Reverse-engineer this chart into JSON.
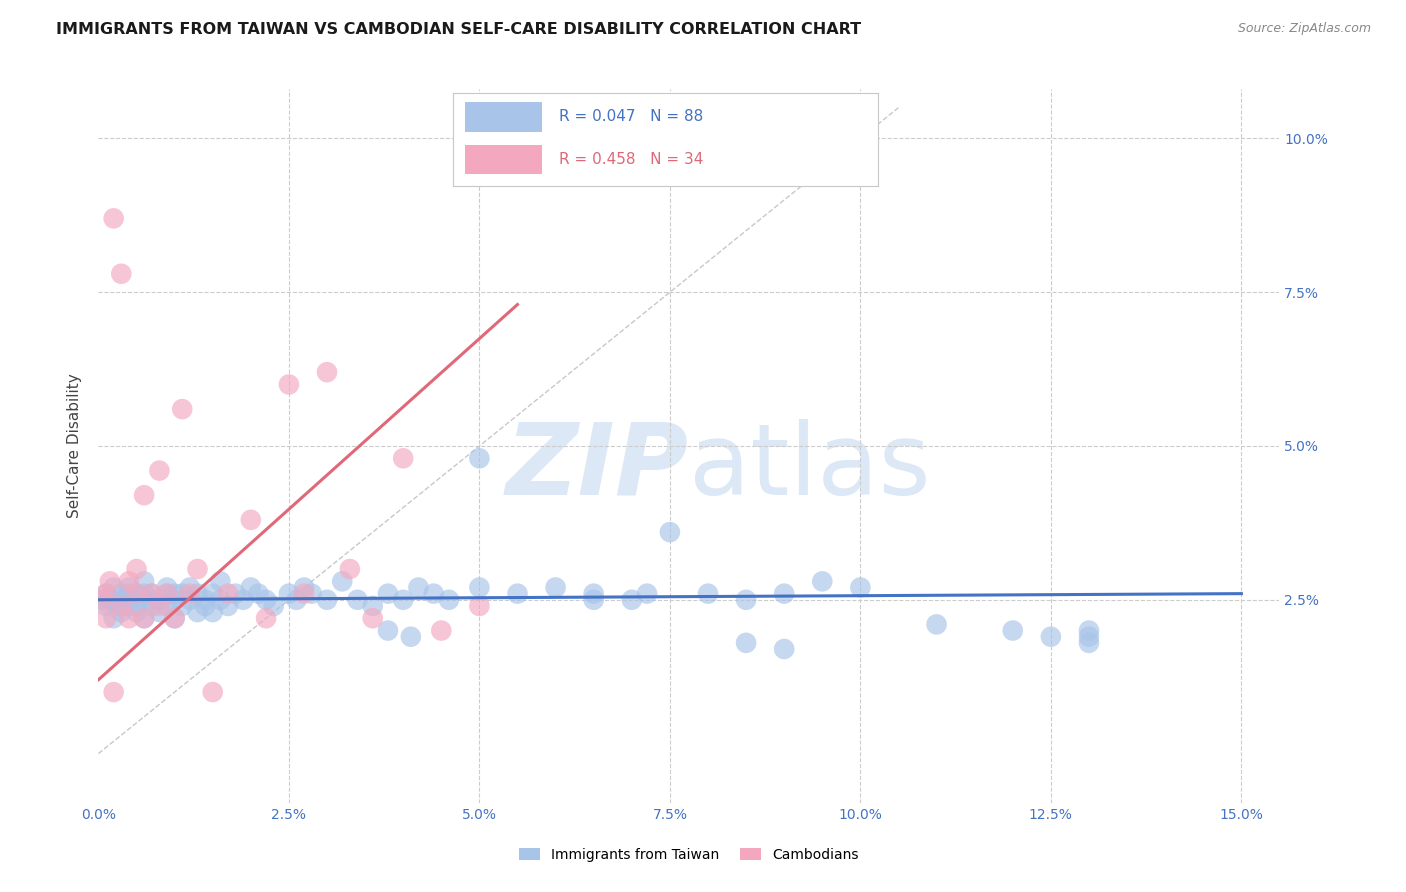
{
  "title": "IMMIGRANTS FROM TAIWAN VS CAMBODIAN SELF-CARE DISABILITY CORRELATION CHART",
  "source": "Source: ZipAtlas.com",
  "ylabel_label": "Self-Care Disability",
  "xlim": [
    0.0,
    0.155
  ],
  "ylim": [
    -0.008,
    0.108
  ],
  "taiwan_color": "#a8c4e8",
  "cambodian_color": "#f4a8c0",
  "taiwan_R": 0.047,
  "taiwan_N": 88,
  "cambodian_R": 0.458,
  "cambodian_N": 34,
  "taiwan_line_color": "#4472c4",
  "cambodian_line_color": "#e06878",
  "diagonal_line_color": "#c8c8c8",
  "background_color": "#ffffff",
  "grid_color": "#cccccc",
  "tick_label_color": "#4472c4",
  "legend_border_color": "#c8c8c8",
  "taiwan_scatter_x": [
    0.0005,
    0.001,
    0.001,
    0.0015,
    0.002,
    0.002,
    0.002,
    0.003,
    0.003,
    0.003,
    0.004,
    0.004,
    0.004,
    0.004,
    0.005,
    0.005,
    0.005,
    0.006,
    0.006,
    0.006,
    0.006,
    0.007,
    0.007,
    0.007,
    0.008,
    0.008,
    0.009,
    0.009,
    0.009,
    0.01,
    0.01,
    0.01,
    0.011,
    0.011,
    0.012,
    0.012,
    0.013,
    0.013,
    0.014,
    0.014,
    0.015,
    0.015,
    0.016,
    0.016,
    0.017,
    0.018,
    0.019,
    0.02,
    0.021,
    0.022,
    0.023,
    0.025,
    0.026,
    0.027,
    0.028,
    0.03,
    0.032,
    0.034,
    0.036,
    0.038,
    0.04,
    0.042,
    0.044,
    0.046,
    0.05,
    0.055,
    0.06,
    0.065,
    0.07,
    0.072,
    0.075,
    0.08,
    0.085,
    0.09,
    0.095,
    0.1,
    0.11,
    0.12,
    0.125,
    0.13,
    0.13,
    0.13,
    0.038,
    0.041,
    0.05,
    0.065,
    0.085,
    0.09
  ],
  "taiwan_scatter_y": [
    0.025,
    0.026,
    0.024,
    0.025,
    0.025,
    0.022,
    0.027,
    0.024,
    0.026,
    0.023,
    0.025,
    0.024,
    0.027,
    0.026,
    0.023,
    0.026,
    0.024,
    0.025,
    0.022,
    0.028,
    0.026,
    0.024,
    0.026,
    0.025,
    0.025,
    0.023,
    0.026,
    0.024,
    0.027,
    0.025,
    0.022,
    0.026,
    0.024,
    0.026,
    0.025,
    0.027,
    0.023,
    0.026,
    0.025,
    0.024,
    0.026,
    0.023,
    0.028,
    0.025,
    0.024,
    0.026,
    0.025,
    0.027,
    0.026,
    0.025,
    0.024,
    0.026,
    0.025,
    0.027,
    0.026,
    0.025,
    0.028,
    0.025,
    0.024,
    0.026,
    0.025,
    0.027,
    0.026,
    0.025,
    0.048,
    0.026,
    0.027,
    0.026,
    0.025,
    0.026,
    0.036,
    0.026,
    0.025,
    0.026,
    0.028,
    0.027,
    0.021,
    0.02,
    0.019,
    0.02,
    0.019,
    0.018,
    0.02,
    0.019,
    0.027,
    0.025,
    0.018,
    0.017
  ],
  "cambodian_scatter_x": [
    0.0005,
    0.001,
    0.001,
    0.0015,
    0.002,
    0.002,
    0.003,
    0.003,
    0.004,
    0.004,
    0.005,
    0.005,
    0.006,
    0.006,
    0.007,
    0.008,
    0.008,
    0.009,
    0.01,
    0.011,
    0.012,
    0.013,
    0.015,
    0.017,
    0.02,
    0.022,
    0.025,
    0.027,
    0.03,
    0.033,
    0.036,
    0.04,
    0.045,
    0.05
  ],
  "cambodian_scatter_y": [
    0.025,
    0.026,
    0.022,
    0.028,
    0.087,
    0.01,
    0.024,
    0.078,
    0.028,
    0.022,
    0.026,
    0.03,
    0.022,
    0.042,
    0.026,
    0.024,
    0.046,
    0.026,
    0.022,
    0.056,
    0.026,
    0.03,
    0.01,
    0.026,
    0.038,
    0.022,
    0.06,
    0.026,
    0.062,
    0.03,
    0.022,
    0.048,
    0.02,
    0.024
  ],
  "tw_regression": [
    0.0,
    0.15,
    0.025,
    0.026
  ],
  "cam_regression": [
    0.0,
    0.055,
    0.012,
    0.073
  ]
}
